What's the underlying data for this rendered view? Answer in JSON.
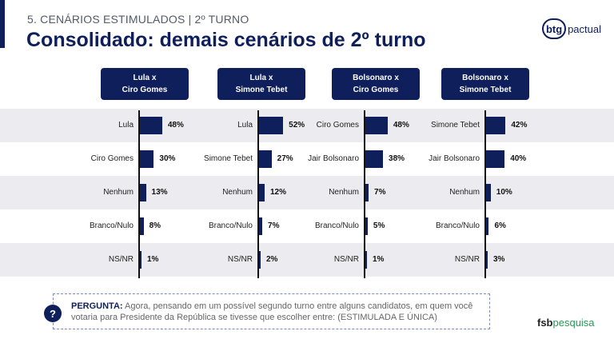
{
  "header": {
    "section": "5. CENÁRIOS ESTIMULADOS | 2º TURNO",
    "title": "Consolidado: demais cenários de 2º turno"
  },
  "logos": {
    "btg_mark": "btg",
    "btg_word": "pactual",
    "fsb_a": "fsb",
    "fsb_b": "pesquisa"
  },
  "question": {
    "icon": "?",
    "label": "PERGUNTA:",
    "text": "Agora, pensando em um possível segundo turno entre alguns candidatos, em quem você votaria para Presidente da República se tivesse que escolher entre: (ESTIMULADA E ÚNICA)"
  },
  "colors": {
    "navy": "#0f1f5c",
    "stripe": "#ececf0",
    "green": "#1f9b54"
  },
  "chart_data": [
    {
      "type": "bar",
      "orientation": "horizontal",
      "title_line1": "Lula x",
      "title_line2": "Ciro Gomes",
      "categories": [
        "Lula",
        "Ciro Gomes",
        "Nenhum",
        "Branco/Nulo",
        "NS/NR"
      ],
      "values": [
        48,
        30,
        13,
        8,
        1
      ],
      "labels": [
        "48%",
        "30%",
        "13%",
        "8%",
        "1%"
      ]
    },
    {
      "type": "bar",
      "orientation": "horizontal",
      "title_line1": "Lula x",
      "title_line2": "Simone Tebet",
      "categories": [
        "Lula",
        "Simone Tebet",
        "Nenhum",
        "Branco/Nulo",
        "NS/NR"
      ],
      "values": [
        52,
        27,
        12,
        7,
        2
      ],
      "labels": [
        "52%",
        "27%",
        "12%",
        "7%",
        "2%"
      ]
    },
    {
      "type": "bar",
      "orientation": "horizontal",
      "title_line1": "Bolsonaro x",
      "title_line2": "Ciro Gomes",
      "categories": [
        "Ciro Gomes",
        "Jair Bolsonaro",
        "Nenhum",
        "Branco/Nulo",
        "NS/NR"
      ],
      "values": [
        48,
        38,
        7,
        5,
        1
      ],
      "labels": [
        "48%",
        "38%",
        "7%",
        "5%",
        "1%"
      ]
    },
    {
      "type": "bar",
      "orientation": "horizontal",
      "title_line1": "Bolsonaro x",
      "title_line2": "Simone Tebet",
      "categories": [
        "Simone Tebet",
        "Jair Bolsonaro",
        "Nenhum",
        "Branco/Nulo",
        "NS/NR"
      ],
      "values": [
        42,
        40,
        10,
        6,
        3
      ],
      "labels": [
        "42%",
        "40%",
        "10%",
        "6%",
        "3%"
      ]
    }
  ]
}
